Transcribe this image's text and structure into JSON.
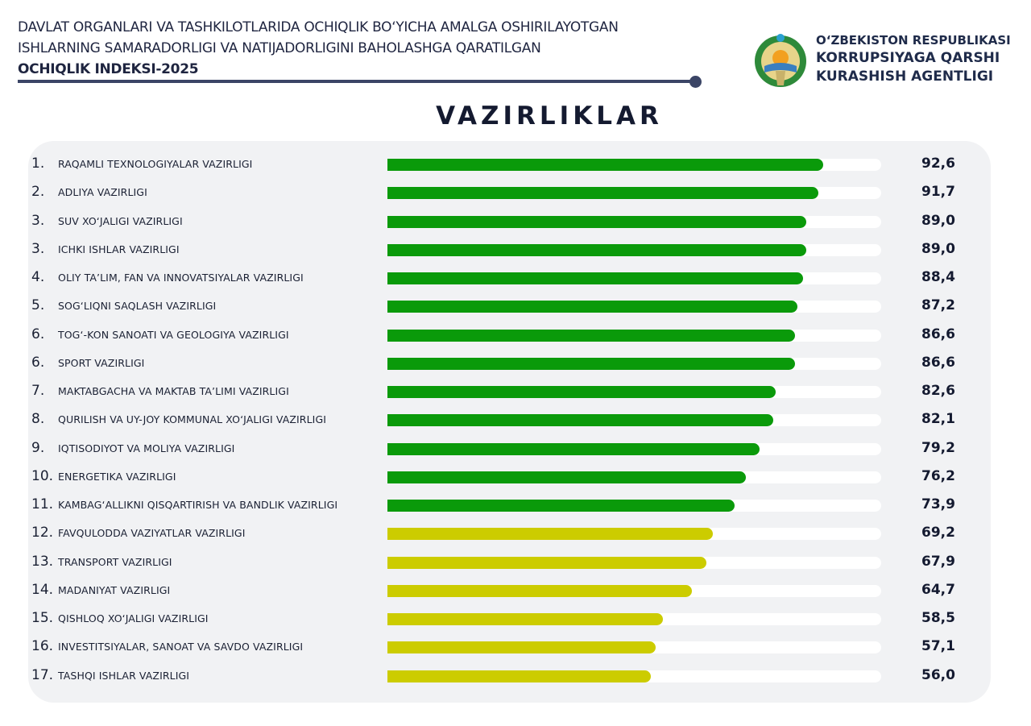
{
  "header": {
    "line1": "DAVLAT ORGANLARI VA TASHKILOTLARIDA OCHIQLIK BO‘YICHA AMALGA OSHIRILAYOTGAN",
    "line2": "ISHLARNING SAMARADORLIGI VA NATIJADORLIGINI BAHOLASHGA QARATILGAN",
    "line3": "OCHIQLIK INDEKSI-2025",
    "org1": "O‘ZBEKISTON RESPUBLIKASI",
    "org2": "KORRUPSIYAGA QARSHI",
    "org3": "KURASHISH AGENTLIGI"
  },
  "chart_data": {
    "type": "bar",
    "orientation": "horizontal",
    "title": "VAZIRLIKLAR",
    "xlim": [
      0,
      105
    ],
    "colors": {
      "high": "#0a9a0a",
      "mid": "#cccc00",
      "track": "#ffffff"
    },
    "rows": [
      {
        "rank": "1.",
        "label": "RAQAMLI TEXNOLOGIYALAR VAZIRLIGI",
        "value": 92.6,
        "display": "92,6",
        "color": "high"
      },
      {
        "rank": "2.",
        "label": "ADLIYA VAZIRLIGI",
        "value": 91.7,
        "display": "91,7",
        "color": "high"
      },
      {
        "rank": "3.",
        "label": "SUV XO‘JALIGI VAZIRLIGI",
        "value": 89.0,
        "display": "89,0",
        "color": "high"
      },
      {
        "rank": "3.",
        "label": "ICHKI ISHLAR VAZIRLIGI",
        "value": 89.0,
        "display": "89,0",
        "color": "high"
      },
      {
        "rank": "4.",
        "label": "OLIY TA’LIM, FAN VA INNOVATSIYALAR VAZIRLIGI",
        "value": 88.4,
        "display": "88,4",
        "color": "high"
      },
      {
        "rank": "5.",
        "label": "SOG‘LIQNI SAQLASH VAZIRLIGI",
        "value": 87.2,
        "display": "87,2",
        "color": "high"
      },
      {
        "rank": "6.",
        "label": "TOG‘-KON SANOATI VA GEOLOGIYA VAZIRLIGI",
        "value": 86.6,
        "display": "86,6",
        "color": "high"
      },
      {
        "rank": "6.",
        "label": "SPORT VAZIRLIGI",
        "value": 86.6,
        "display": "86,6",
        "color": "high"
      },
      {
        "rank": "7.",
        "label": "MAKTABGACHA VA MAKTAB TA’LIMI VAZIRLIGI",
        "value": 82.6,
        "display": "82,6",
        "color": "high"
      },
      {
        "rank": "8.",
        "label": "QURILISH VA UY-JOY KOMMUNAL XO‘JALIGI VAZIRLIGI",
        "value": 82.1,
        "display": "82,1",
        "color": "high"
      },
      {
        "rank": "9.",
        "label": "IQTISODIYOT VA MOLIYA VAZIRLIGI",
        "value": 79.2,
        "display": "79,2",
        "color": "high"
      },
      {
        "rank": "10.",
        "label": "ENERGETIKA VAZIRLIGI",
        "value": 76.2,
        "display": "76,2",
        "color": "high"
      },
      {
        "rank": "11.",
        "label": "KAMBAG‘ALLIKNI QISQARTIRISH VA BANDLIK VAZIRLIGI",
        "value": 73.9,
        "display": "73,9",
        "color": "high"
      },
      {
        "rank": "12.",
        "label": "FAVQULODDA VAZIYATLAR VAZIRLIGI",
        "value": 69.2,
        "display": "69,2",
        "color": "mid"
      },
      {
        "rank": "13.",
        "label": "TRANSPORT VAZIRLIGI",
        "value": 67.9,
        "display": "67,9",
        "color": "mid"
      },
      {
        "rank": "14.",
        "label": "MADANIYAT VAZIRLIGI",
        "value": 64.7,
        "display": "64,7",
        "color": "mid"
      },
      {
        "rank": "15.",
        "label": "QISHLOQ XO‘JALIGI VAZIRLIGI",
        "value": 58.5,
        "display": "58,5",
        "color": "mid"
      },
      {
        "rank": "16.",
        "label": "INVESTITSIYALAR, SANOAT VA SAVDO VAZIRLIGI",
        "value": 57.1,
        "display": "57,1",
        "color": "mid"
      },
      {
        "rank": "17.",
        "label": "TASHQI ISHLAR VAZIRLIGI",
        "value": 56.0,
        "display": "56,0",
        "color": "mid"
      }
    ]
  }
}
